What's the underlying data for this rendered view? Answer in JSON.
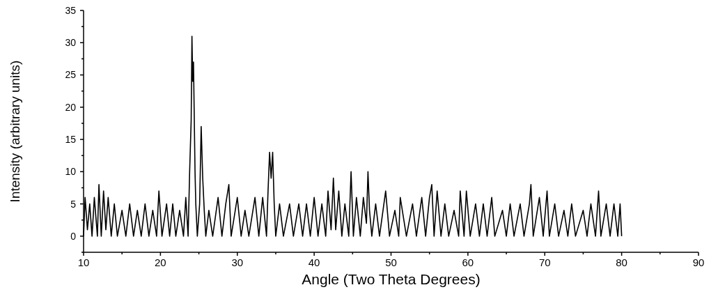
{
  "chart_data": {
    "type": "line",
    "xlabel": "Angle (Two Theta Degrees)",
    "ylabel": "Intensity (arbitrary units)",
    "xlim": [
      10,
      90
    ],
    "ylim": [
      -2.5,
      35
    ],
    "xticks": [
      10,
      {
        "value": 15,
        "label": null
      },
      20,
      {
        "value": 25,
        "label": null
      },
      30,
      {
        "value": 35,
        "label": null
      },
      40,
      {
        "value": 45,
        "label": null
      },
      50,
      {
        "value": 55,
        "label": null
      },
      60,
      {
        "value": 65,
        "label": null
      },
      70,
      {
        "value": 75,
        "label": null
      },
      80,
      {
        "value": 85,
        "label": null
      },
      90
    ],
    "yticks": [
      {
        "value": -2.5,
        "label": null
      },
      0,
      {
        "value": 2.5,
        "label": null
      },
      5,
      {
        "value": 7.5,
        "label": null
      },
      10,
      {
        "value": 12.5,
        "label": null
      },
      15,
      {
        "value": 17.5,
        "label": null
      },
      20,
      {
        "value": 22.5,
        "label": null
      },
      25,
      {
        "value": 27.5,
        "label": null
      },
      30,
      {
        "value": 32.5,
        "label": null
      },
      35
    ],
    "grid": false,
    "marker": "none",
    "line_style": "solid",
    "series": [
      {
        "color": "#000000",
        "x": [
          10,
          10.2,
          10.5,
          10.8,
          11.1,
          11.4,
          11.8,
          12,
          12.3,
          12.6,
          12.9,
          13.2,
          13.6,
          14,
          14.4,
          15,
          15.5,
          16,
          16.5,
          17,
          17.5,
          18,
          18.5,
          19,
          19.5,
          19.8,
          20.2,
          20.8,
          21.2,
          21.6,
          22,
          22.5,
          23,
          23.3,
          23.6,
          23.8,
          24,
          24.1,
          24.2,
          24.3,
          24.5,
          24.6,
          24.8,
          25.1,
          25.3,
          25.5,
          25.7,
          25.9,
          26.3,
          26.8,
          27.5,
          28,
          28.5,
          28.9,
          29.2,
          30,
          30.5,
          31,
          31.5,
          32.3,
          32.8,
          33.3,
          33.8,
          34,
          34.2,
          34.4,
          34.6,
          34.8,
          35,
          35.5,
          36,
          36.8,
          37.3,
          38,
          38.5,
          39,
          39.5,
          40,
          40.5,
          41,
          41.5,
          41.8,
          42.2,
          42.5,
          42.8,
          43.2,
          43.6,
          44,
          44.5,
          44.8,
          45.1,
          45.5,
          46,
          46.4,
          46.8,
          47,
          47.2,
          47.5,
          48,
          48.5,
          49.3,
          49.8,
          50.5,
          51,
          51.2,
          52,
          52.8,
          53.3,
          54,
          54.5,
          55,
          55.3,
          55.6,
          56,
          56.5,
          57,
          57.5,
          58.2,
          58.8,
          59,
          59.5,
          59.8,
          60.3,
          61,
          61.5,
          62,
          62.5,
          63.1,
          63.5,
          64.5,
          65,
          65.5,
          66,
          66.8,
          67.3,
          68,
          68.2,
          68.5,
          69.3,
          69.8,
          70.3,
          70.6,
          71.3,
          71.8,
          72.5,
          73,
          73.5,
          74,
          75,
          75.5,
          76,
          76.6,
          77,
          77.3,
          78,
          78.5,
          79,
          79.5,
          79.8,
          80
        ],
        "values": [
          0,
          6,
          1,
          5,
          0,
          6,
          0,
          8,
          0,
          7,
          1,
          6,
          0,
          5,
          0,
          4,
          0,
          5,
          0,
          4,
          0,
          5,
          0,
          4,
          0,
          7,
          0,
          5,
          0,
          5,
          0,
          4,
          0,
          6,
          0,
          10,
          18,
          31,
          24,
          27,
          10,
          5,
          0,
          5,
          17,
          9,
          4,
          0,
          4,
          0,
          6,
          0,
          5,
          8,
          0,
          6,
          0,
          4,
          0,
          6,
          0,
          6,
          0,
          7,
          13,
          9,
          13,
          5,
          0,
          5,
          0,
          5,
          0,
          5,
          0,
          5,
          0,
          6,
          0,
          5,
          0,
          7,
          1,
          9,
          1,
          7,
          0,
          5,
          0,
          10,
          0,
          6,
          0,
          6,
          2,
          10,
          4,
          0,
          5,
          0,
          7,
          0,
          4,
          0,
          6,
          0,
          5,
          0,
          6,
          0,
          6,
          8,
          0,
          7,
          0,
          5,
          0,
          4,
          0,
          7,
          0,
          7,
          0,
          5,
          0,
          5,
          0,
          6,
          0,
          4,
          0,
          5,
          0,
          5,
          0,
          5,
          8,
          0,
          6,
          0,
          7,
          0,
          5,
          0,
          4,
          0,
          5,
          0,
          4,
          0,
          5,
          0,
          7,
          0,
          5,
          0,
          5,
          0,
          5,
          0
        ]
      }
    ]
  }
}
